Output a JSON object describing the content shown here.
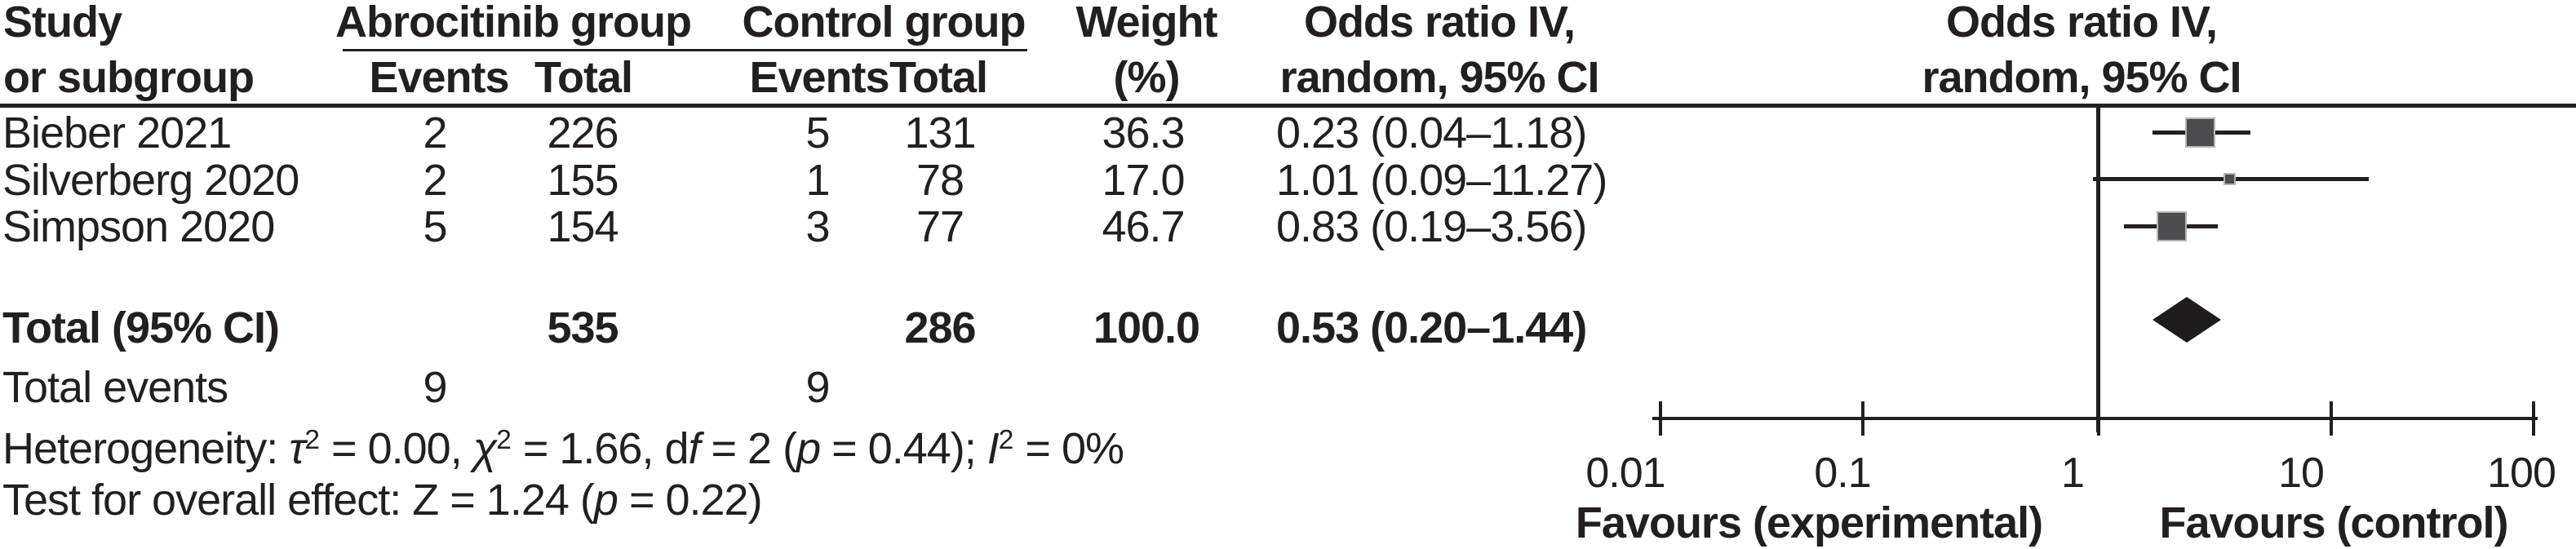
{
  "colors": {
    "ink": "#231f20",
    "square-fill": "#4d4d4f",
    "square-border": "#b5b5b5",
    "diamond": "#1e1c1d"
  },
  "header": {
    "study_line1": "Study",
    "study_line2": "or subgroup",
    "group1": "Abrocitinib group",
    "group2": "Control group",
    "events": "Events",
    "total": "Total",
    "weight_line1": "Weight",
    "weight_line2": "(%)",
    "or_line1": "Odds ratio IV,",
    "or_line2": "random, 95% CI",
    "plot_line1": "Odds ratio IV,",
    "plot_line2": "random, 95% CI"
  },
  "table": {
    "rows": [
      {
        "study": "Bieber 2021",
        "e1": "2",
        "t1": "226",
        "e2": "5",
        "t2": "131",
        "weight": "36.3",
        "or_text": "0.23 (0.04–1.18)"
      },
      {
        "study": "Silverberg 2020",
        "e1": "2",
        "t1": "155",
        "e2": "1",
        "t2": "78",
        "weight": "17.0",
        "or_text": "1.01 (0.09–11.27)"
      },
      {
        "study": "Simpson 2020",
        "e1": "5",
        "t1": "154",
        "e2": "3",
        "t2": "77",
        "weight": "46.7",
        "or_text": "0.83 (0.19–3.56)"
      }
    ],
    "total_row": {
      "label": "Total (95% CI)",
      "t1": "535",
      "t2": "286",
      "weight": "100.0",
      "or_text": "0.53 (0.20–1.44)"
    },
    "total_events": {
      "label": "Total events",
      "e1": "9",
      "e2": "9"
    }
  },
  "stats": {
    "heterogeneity": [
      {
        "t": "Heterogeneity: "
      },
      {
        "t": "τ",
        "i": true
      },
      {
        "t": "2",
        "sup": true
      },
      {
        "t": " = 0.00, "
      },
      {
        "t": "χ",
        "i": true
      },
      {
        "t": "2",
        "sup": true
      },
      {
        "t": " = 1.66, d"
      },
      {
        "t": "f",
        "i": true
      },
      {
        "t": " = 2 ("
      },
      {
        "t": "p",
        "i": true
      },
      {
        "t": " = 0.44); "
      },
      {
        "t": "I",
        "i": true
      },
      {
        "t": "2",
        "sup": true
      },
      {
        "t": " = 0%"
      }
    ],
    "overall_effect": [
      {
        "t": "Test for overall effect: "
      },
      {
        "t": "Z"
      },
      {
        "t": " = 1.24 ("
      },
      {
        "t": "p",
        "i": true
      },
      {
        "t": " = 0.22)"
      }
    ]
  },
  "axis": {
    "tick_labels": [
      "0.01",
      "0.1",
      "1",
      "10",
      "100"
    ],
    "favours_left": "Favours (experimental)",
    "favours_right": "Favours (control)"
  },
  "chart_data": {
    "type": "scatter",
    "subtype": "forest-plot",
    "title": "",
    "effect_measure": "Odds ratio IV, random, 95% CI",
    "x_scale": "log",
    "x_ticks": [
      0.01,
      0.1,
      1,
      10,
      100
    ],
    "xlim": [
      0.01,
      100
    ],
    "x_axis_labels": {
      "left": "Favours (experimental)",
      "right": "Favours (control)"
    },
    "studies": [
      {
        "name": "Bieber 2021",
        "events_experimental": 2,
        "total_experimental": 226,
        "events_control": 5,
        "total_control": 131,
        "weight_pct": 36.3,
        "or": 0.23,
        "ci_low": 0.04,
        "ci_high": 1.18
      },
      {
        "name": "Silverberg 2020",
        "events_experimental": 2,
        "total_experimental": 155,
        "events_control": 1,
        "total_control": 78,
        "weight_pct": 17.0,
        "or": 1.01,
        "ci_low": 0.09,
        "ci_high": 11.27
      },
      {
        "name": "Simpson 2020",
        "events_experimental": 5,
        "total_experimental": 154,
        "events_control": 3,
        "total_control": 77,
        "weight_pct": 46.7,
        "or": 0.83,
        "ci_low": 0.19,
        "ci_high": 3.56
      }
    ],
    "total": {
      "label": "Total (95% CI)",
      "total_experimental": 535,
      "total_control": 286,
      "weight_pct": 100.0,
      "or": 0.53,
      "ci_low": 0.2,
      "ci_high": 1.44
    },
    "total_events": {
      "experimental": 9,
      "control": 9
    },
    "heterogeneity": "τ2 = 0.00, χ2 = 1.66, df = 2 (p = 0.44); I2 = 0%",
    "overall_effect_test": "Z = 1.24 (p = 0.22)",
    "legend_position": "none",
    "grid": false
  }
}
